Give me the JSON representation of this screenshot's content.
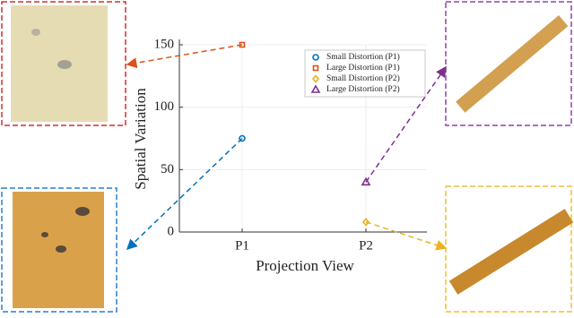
{
  "chart_data": {
    "type": "scatter",
    "x_label": "Projection View",
    "y_label": "Spatial Variation",
    "categories": [
      "P1",
      "P2"
    ],
    "series": [
      {
        "name": "Small Distortion (P1)",
        "color": "#0072bd",
        "marker": "circle",
        "values": [
          75,
          null
        ]
      },
      {
        "name": "Large Distortion (P1)",
        "color": "#d95319",
        "marker": "square",
        "values": [
          150,
          null
        ]
      },
      {
        "name": "Small Distortion (P2)",
        "color": "#edb120",
        "marker": "diamond",
        "values": [
          null,
          8
        ]
      },
      {
        "name": "Large Distortion (P2)",
        "color": "#7e2f8e",
        "marker": "triangle",
        "values": [
          null,
          40
        ]
      }
    ],
    "ylim": [
      0,
      150
    ],
    "yticks": [
      0,
      50,
      100,
      150
    ],
    "grid": true,
    "legend": "upper right"
  }
}
